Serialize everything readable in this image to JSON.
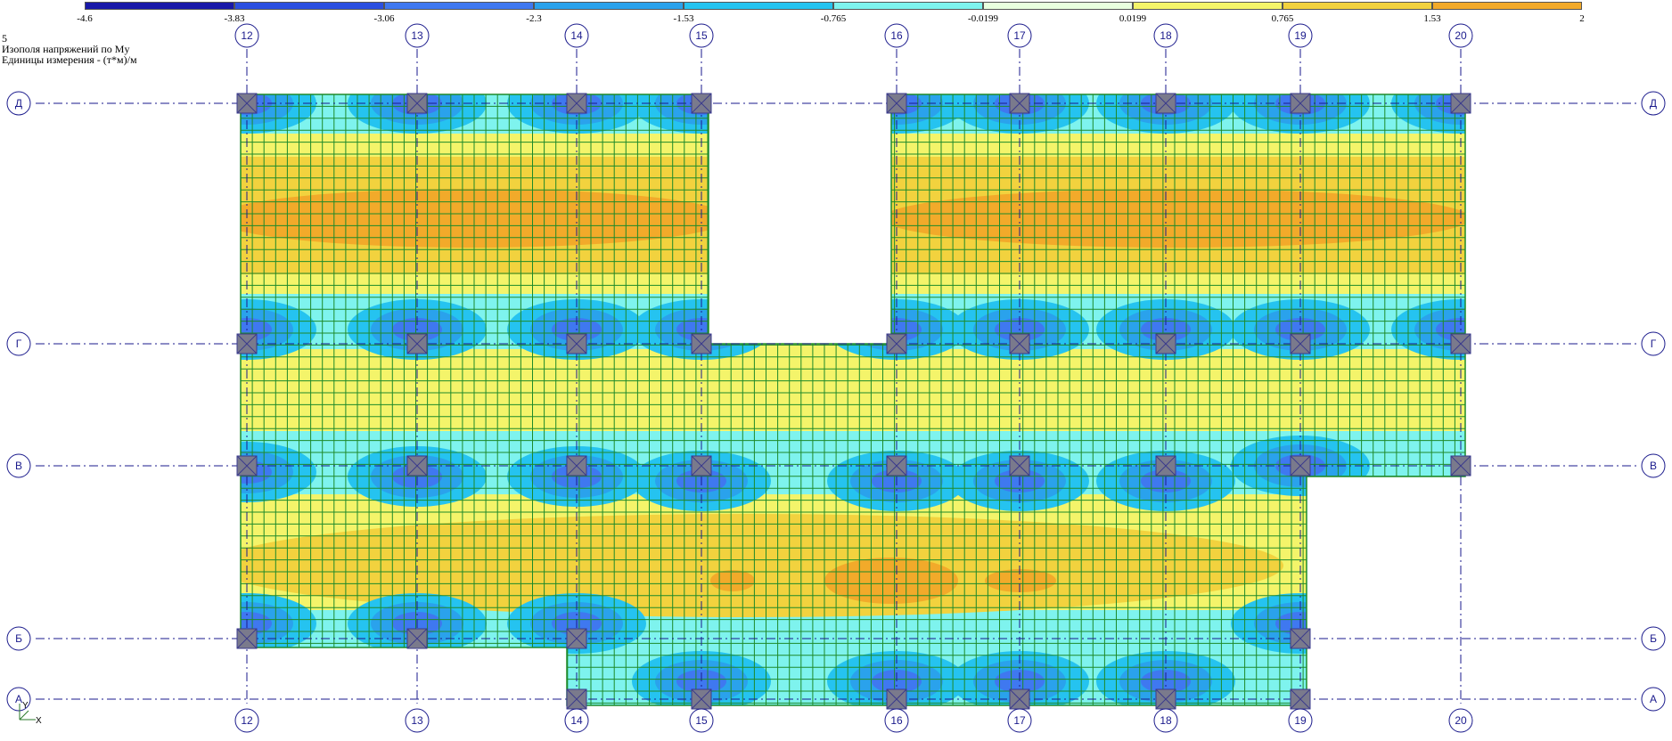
{
  "legend": {
    "values": [
      "-4.6",
      "-3.83",
      "-3.06",
      "-2.3",
      "-1.53",
      "-0.765",
      "-0.0199",
      "0.0199",
      "0.765",
      "1.53",
      "2"
    ],
    "colors": [
      "#1818a8",
      "#2b4fe0",
      "#3f78f0",
      "#2aa2ec",
      "#25c3f0",
      "#7ef3ee",
      "#e9ffdf",
      "#f4f46a",
      "#f2d23e",
      "#f2aa2a"
    ]
  },
  "info": {
    "number": "5",
    "title": "Изополя напряжений по My",
    "units": "Единицы измерения - (т*м)/м"
  },
  "axes": {
    "columns": [
      "12",
      "13",
      "14",
      "15",
      "16",
      "17",
      "18",
      "19",
      "20"
    ],
    "rows": [
      "Д",
      "Г",
      "В",
      "Б",
      "А"
    ]
  },
  "coord_icon": {
    "y_label": "Y",
    "x_label": "X"
  },
  "colors": {
    "mesh": "#1e8a2a",
    "axis": "#1a1a8c",
    "column": "#7a7a8c",
    "field_base": "#7ef3ee"
  }
}
